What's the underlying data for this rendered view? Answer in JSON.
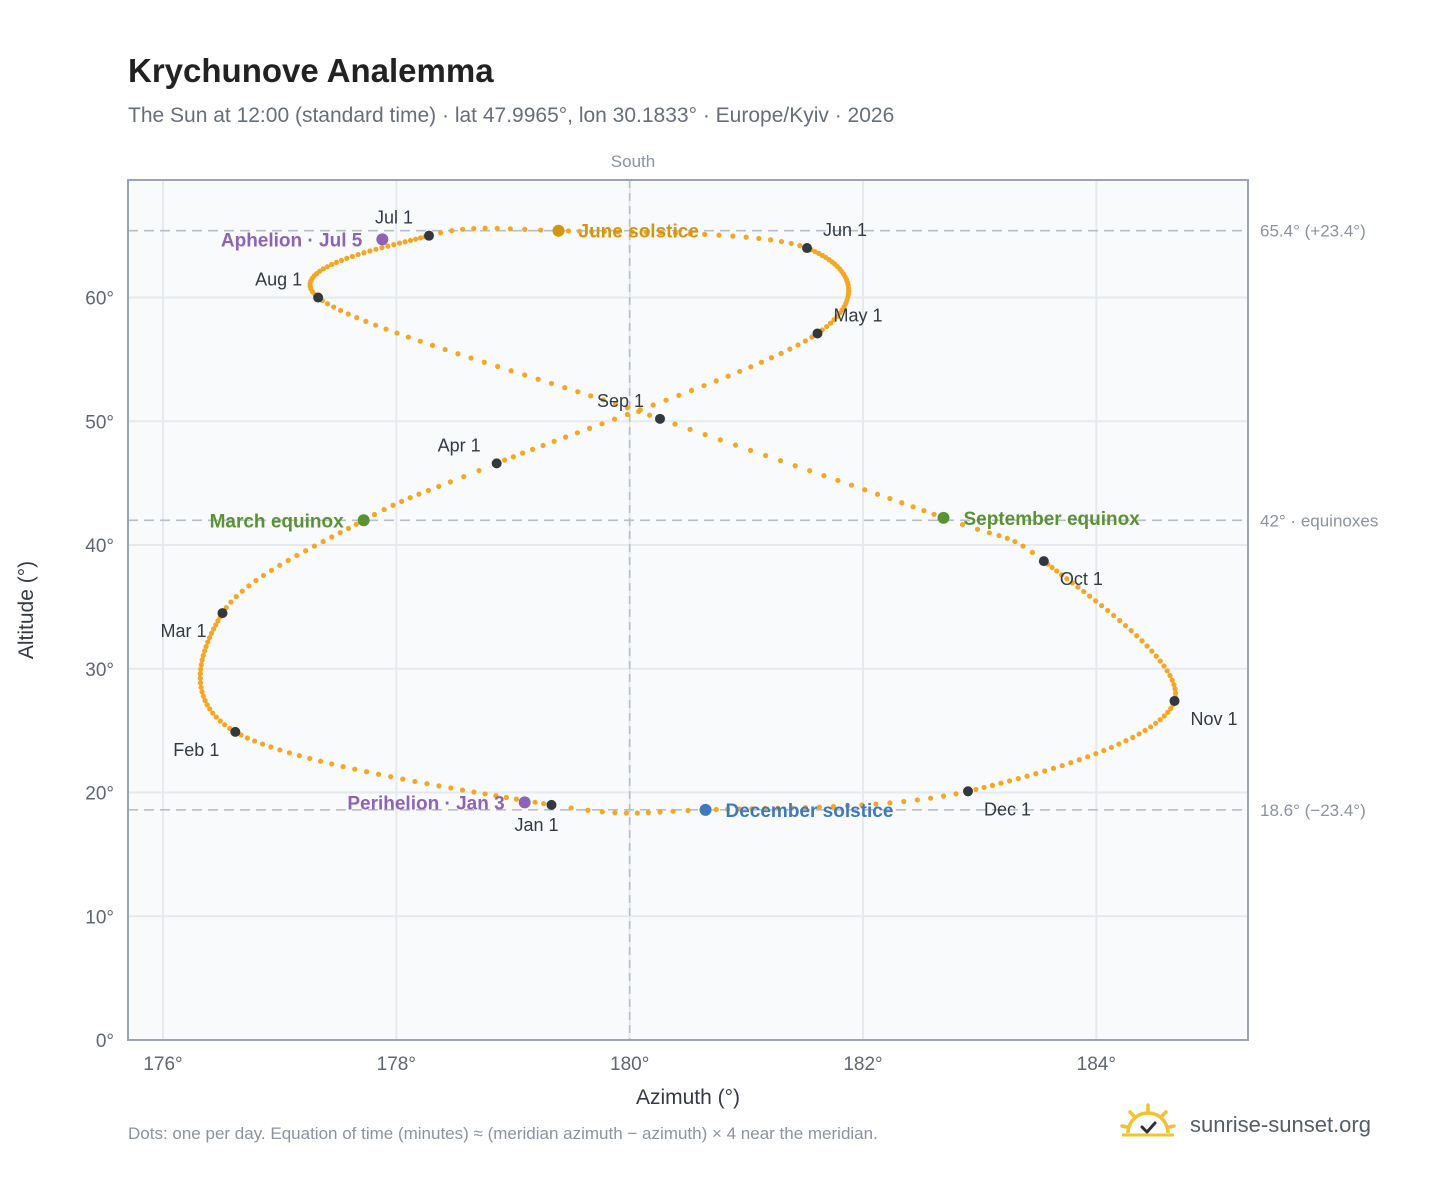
{
  "title": "Krychunove Analemma",
  "subtitle": "The Sun at 12:00 (standard time) · lat 47.9965°, lon 30.1833° · Europe/Kyiv · 2026",
  "footnote": "Dots: one per day. Equation of time (minutes) ≈ (meridian azimuth − azimuth) × 4 near the meridian.",
  "brand": {
    "name": "sunrise-sunset.org",
    "icon": "sun-logo-icon"
  },
  "colors": {
    "curve": "#f5a623",
    "month_marker": "#33383f",
    "aphelion_perihelion": "#8e63b5",
    "equinox": "#5a9234",
    "june_solstice": "#d4960e",
    "december_solstice": "#3d79bd",
    "grid": "#e6eaee",
    "reference": "#b7bfc8",
    "plot_bg": "#f8fafc",
    "frame": "#9aa4b0"
  },
  "chart_data": {
    "type": "scatter",
    "xlabel": "Azimuth (°)",
    "ylabel": "Altitude (°)",
    "xlim": [
      175.7,
      185.3
    ],
    "ylim": [
      0,
      69.5
    ],
    "xticks": [
      176,
      178,
      180,
      182,
      184
    ],
    "xtick_labels": [
      "176°",
      "178°",
      "180°",
      "182°",
      "184°"
    ],
    "yticks": [
      0,
      10,
      20,
      30,
      40,
      50,
      60
    ],
    "ytick_labels": [
      "0°",
      "10°",
      "20°",
      "30°",
      "40°",
      "50°",
      "60°"
    ],
    "grid": true,
    "reference_lines": {
      "vertical": {
        "x": 180,
        "label": "South"
      },
      "horizontal": [
        {
          "y": 65.4,
          "label": "65.4° (+23.4°)"
        },
        {
          "y": 42.0,
          "label": "42° · equinoxes"
        },
        {
          "y": 18.6,
          "label": "18.6° (−23.4°)"
        }
      ]
    },
    "curve_anchors": [
      {
        "day": 1,
        "az": 179.33,
        "alt": 19.0
      },
      {
        "day": 32,
        "az": 176.62,
        "alt": 24.9
      },
      {
        "day": 60,
        "az": 176.51,
        "alt": 34.5
      },
      {
        "day": 79,
        "az": 177.72,
        "alt": 42.0
      },
      {
        "day": 91,
        "az": 178.86,
        "alt": 46.6
      },
      {
        "day": 121,
        "az": 181.61,
        "alt": 57.1
      },
      {
        "day": 152,
        "az": 181.52,
        "alt": 64.0
      },
      {
        "day": 172,
        "az": 179.39,
        "alt": 65.4
      },
      {
        "day": 182,
        "az": 178.28,
        "alt": 65.0
      },
      {
        "day": 213,
        "az": 177.33,
        "alt": 60.0
      },
      {
        "day": 244,
        "az": 180.26,
        "alt": 50.2
      },
      {
        "day": 265,
        "az": 182.69,
        "alt": 42.2
      },
      {
        "day": 274,
        "az": 183.55,
        "alt": 38.7
      },
      {
        "day": 305,
        "az": 184.67,
        "alt": 27.4
      },
      {
        "day": 335,
        "az": 182.9,
        "alt": 20.1
      },
      {
        "day": 355,
        "az": 180.65,
        "alt": 18.6
      },
      {
        "day": 366,
        "az": 179.33,
        "alt": 19.0
      }
    ],
    "month_markers": [
      {
        "label": "Jan 1",
        "az": 179.33,
        "alt": 19.0,
        "pos": "below"
      },
      {
        "label": "Feb 1",
        "az": 176.62,
        "alt": 24.9,
        "pos": "below-left"
      },
      {
        "label": "Mar 1",
        "az": 176.51,
        "alt": 34.5,
        "pos": "below-left"
      },
      {
        "label": "Apr 1",
        "az": 178.86,
        "alt": 46.6,
        "pos": "above-left"
      },
      {
        "label": "May 1",
        "az": 181.61,
        "alt": 57.1,
        "pos": "above-right"
      },
      {
        "label": "Jun 1",
        "az": 181.52,
        "alt": 64.0,
        "pos": "above-right"
      },
      {
        "label": "Jul 1",
        "az": 178.28,
        "alt": 65.0,
        "pos": "above-left"
      },
      {
        "label": "Aug 1",
        "az": 177.33,
        "alt": 60.0,
        "pos": "above-left"
      },
      {
        "label": "Sep 1",
        "az": 180.26,
        "alt": 50.2,
        "pos": "above-left"
      },
      {
        "label": "Oct 1",
        "az": 183.55,
        "alt": 38.7,
        "pos": "below-right"
      },
      {
        "label": "Nov 1",
        "az": 184.67,
        "alt": 27.4,
        "pos": "below-right"
      },
      {
        "label": "Dec 1",
        "az": 182.9,
        "alt": 20.1,
        "pos": "below-right"
      }
    ],
    "events": [
      {
        "label": "Aphelion · Jul 5",
        "az": 177.88,
        "alt": 64.7,
        "color": "#8e63b5",
        "side": "left"
      },
      {
        "label": "June solstice",
        "az": 179.39,
        "alt": 65.4,
        "color": "#d4960e",
        "side": "right"
      },
      {
        "label": "March equinox",
        "az": 177.72,
        "alt": 42.0,
        "color": "#5a9234",
        "side": "left"
      },
      {
        "label": "September equinox",
        "az": 182.69,
        "alt": 42.2,
        "color": "#5a9234",
        "side": "right"
      },
      {
        "label": "Perihelion · Jan 3",
        "az": 179.1,
        "alt": 19.2,
        "color": "#8e63b5",
        "side": "left"
      },
      {
        "label": "December solstice",
        "az": 180.65,
        "alt": 18.6,
        "color": "#3d79bd",
        "side": "right"
      }
    ]
  }
}
